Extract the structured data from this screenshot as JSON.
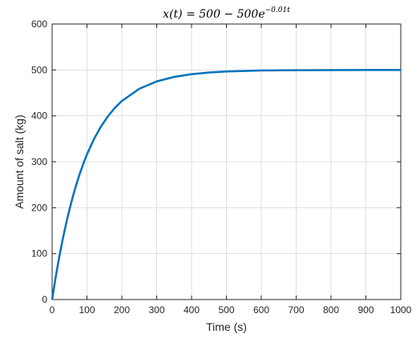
{
  "chart_data": {
    "type": "line",
    "title": "x(t) = 500 − 500e",
    "title_exponent": "−0.01t",
    "xlabel": "Time (s)",
    "ylabel": "Amount of salt (kg)",
    "xlim": [
      0,
      1000
    ],
    "ylim": [
      0,
      600
    ],
    "xticks": [
      0,
      100,
      200,
      300,
      400,
      500,
      600,
      700,
      800,
      900,
      1000
    ],
    "yticks": [
      0,
      100,
      200,
      300,
      400,
      500,
      600
    ],
    "grid": true,
    "line_color": "#0072BD",
    "series": [
      {
        "x": [
          0,
          10,
          20,
          30,
          40,
          50,
          60,
          70,
          80,
          90,
          100,
          120,
          140,
          160,
          180,
          200,
          250,
          300,
          350,
          400,
          450,
          500,
          600,
          700,
          800,
          900,
          1000
        ],
        "values": [
          0,
          47.6,
          90.6,
          129.6,
          164.8,
          196.7,
          225.6,
          251.7,
          275.3,
          296.7,
          316.1,
          349.4,
          376.7,
          399.0,
          417.4,
          432.3,
          459.0,
          475.1,
          484.9,
          490.8,
          494.4,
          496.6,
          498.8,
          499.5,
          499.8,
          499.9,
          500.0
        ]
      }
    ]
  }
}
